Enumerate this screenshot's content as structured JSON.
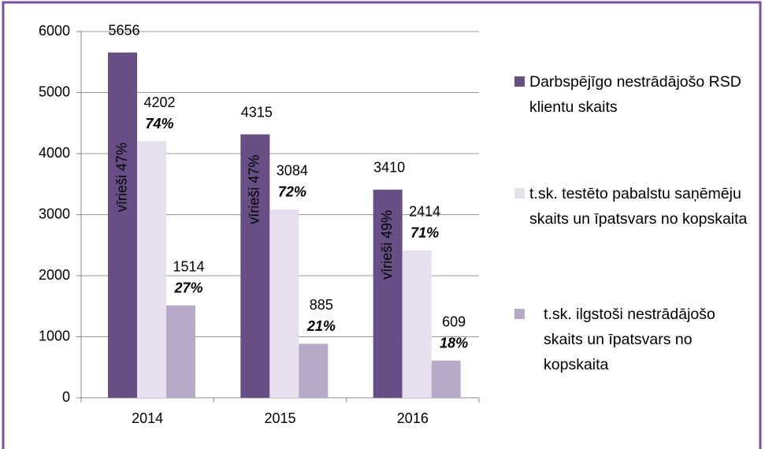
{
  "chart_data": {
    "type": "bar",
    "categories": [
      "2014",
      "2015",
      "2016"
    ],
    "series": [
      {
        "name": "Darbspējīgo nestrādājošo RSD klientu skaits",
        "color": "#674e85",
        "values": [
          5656,
          4315,
          3410
        ],
        "bar_labels": [
          "vīrieši 47%",
          "vīrieši 47%",
          "vīrieši 49%"
        ]
      },
      {
        "name": "t.sk. testēto pabalstu saņēmēju skaits un īpatsvars no kopskaita",
        "color": "#e6dfed",
        "values": [
          4202,
          3084,
          2414
        ],
        "share_labels": [
          "74%",
          "72%",
          "71%"
        ]
      },
      {
        "name": "t.sk. ilgstoši nestrādājošo skaits un īpatsvars no kopskaita",
        "color": "#b7a9c8",
        "values": [
          1514,
          885,
          609
        ],
        "share_labels": [
          "27%",
          "21%",
          "18%"
        ]
      }
    ],
    "ylim": [
      0,
      6000
    ],
    "yticks": [
      0,
      1000,
      2000,
      3000,
      4000,
      5000,
      6000
    ],
    "grid": true,
    "legend": "right"
  }
}
